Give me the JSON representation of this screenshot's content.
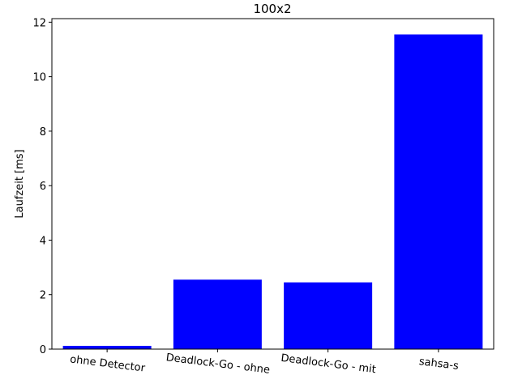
{
  "chart_data": {
    "type": "bar",
    "title": "100x2",
    "xlabel": "",
    "ylabel": "Laufzeit [ms]",
    "categories": [
      "ohne Detector",
      "Deadlock-Go - ohne",
      "Deadlock-Go - mit",
      "sahsa-s"
    ],
    "values": [
      0.12,
      2.55,
      2.45,
      11.55
    ],
    "ylim": [
      0,
      12.13
    ],
    "yticks": [
      "0",
      "2",
      "4",
      "6",
      "8",
      "10",
      "12"
    ],
    "bar_color": "#0000ff",
    "grid": false,
    "x_tick_rotation_deg": 7
  }
}
